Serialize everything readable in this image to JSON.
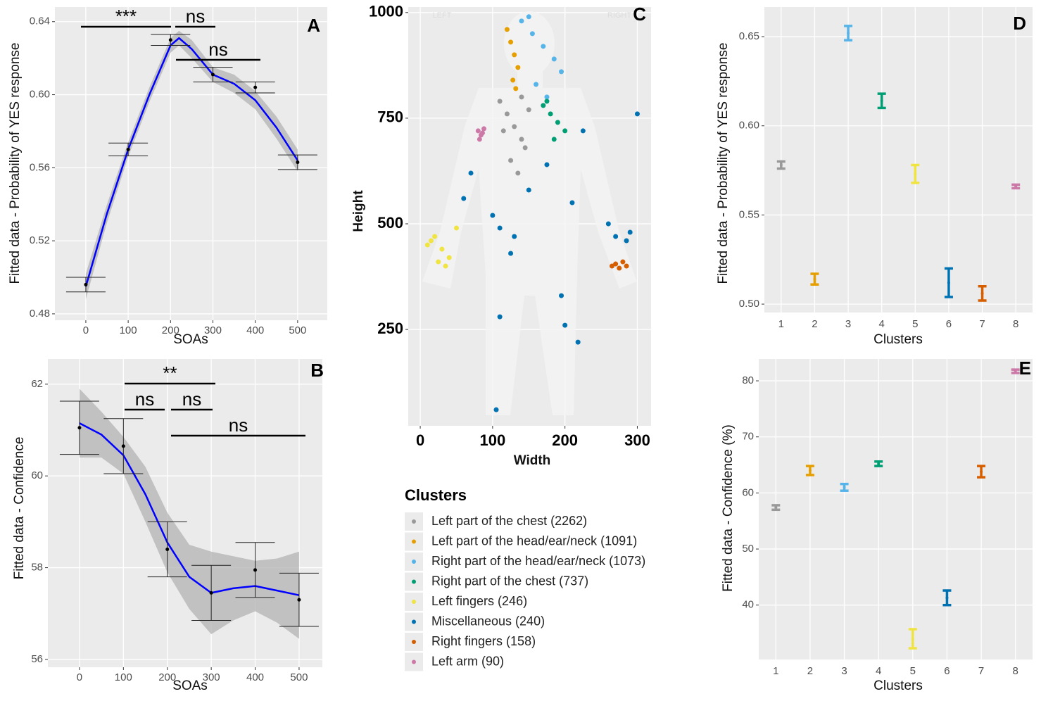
{
  "chart_data": [
    {
      "type": "line",
      "panel": "A",
      "x_label": "SOAs",
      "y_label": "Fitted data - Probability of YES response",
      "x": [
        0,
        100,
        200,
        300,
        400,
        500
      ],
      "values": [
        0.496,
        0.57,
        0.63,
        0.611,
        0.604,
        0.563
      ],
      "errors": [
        0.004,
        0.0035,
        0.003,
        0.004,
        0.003,
        0.004
      ],
      "fit": {
        "x": [
          0,
          50,
          100,
          150,
          200,
          220,
          250,
          300,
          350,
          400,
          450,
          500
        ],
        "values": [
          0.495,
          0.535,
          0.57,
          0.6,
          0.627,
          0.631,
          0.625,
          0.611,
          0.606,
          0.597,
          0.582,
          0.564
        ],
        "lower": [
          0.488,
          0.53,
          0.566,
          0.596,
          0.623,
          0.627,
          0.62,
          0.607,
          0.601,
          0.592,
          0.576,
          0.558
        ],
        "upper": [
          0.502,
          0.54,
          0.574,
          0.604,
          0.631,
          0.635,
          0.63,
          0.615,
          0.611,
          0.602,
          0.588,
          0.57
        ],
        "color": "#0000ff",
        "band_color": "#b3b3b3"
      },
      "point_color": "#000000",
      "xlim": [
        -73,
        570
      ],
      "xticks": [
        0,
        100,
        200,
        300,
        400,
        500
      ],
      "ylim": [
        0.4765,
        0.648
      ],
      "yticks": [
        0.48,
        0.52,
        0.56,
        {
          "value": 0.6,
          "label": "0.60"
        },
        0.64
      ],
      "annotations": [
        "***",
        "ns",
        "ns"
      ],
      "grid": true
    },
    {
      "type": "line",
      "panel": "B",
      "x_label": "SOAs",
      "y_label": "Fitted data - Confidence",
      "x": [
        0,
        100,
        200,
        300,
        400,
        500
      ],
      "values": [
        61.05,
        60.65,
        58.4,
        57.45,
        57.95,
        57.3
      ],
      "errors": [
        0.58,
        0.6,
        0.6,
        0.6,
        0.6,
        0.58
      ],
      "fit": {
        "x": [
          0,
          50,
          100,
          150,
          200,
          250,
          300,
          350,
          400,
          450,
          500
        ],
        "values": [
          61.15,
          60.9,
          60.45,
          59.6,
          58.55,
          57.8,
          57.45,
          57.55,
          57.6,
          57.5,
          57.4
        ],
        "lower": [
          60.4,
          60.4,
          60.05,
          59.0,
          57.9,
          57.1,
          56.55,
          56.85,
          57.05,
          56.8,
          56.45
        ],
        "upper": [
          61.9,
          61.4,
          60.85,
          60.2,
          59.2,
          58.5,
          58.35,
          58.25,
          58.15,
          58.2,
          58.35
        ],
        "color": "#0000ff",
        "band_color": "#b3b3b3"
      },
      "point_color": "#000000",
      "xlim": [
        -72,
        553
      ],
      "xticks": [
        0,
        100,
        200,
        300,
        400,
        500
      ],
      "ylim": [
        55.83,
        62.55
      ],
      "yticks": [
        56,
        58,
        60,
        62
      ],
      "annotations": [
        "**",
        "ns",
        "ns",
        "ns"
      ],
      "grid": true
    },
    {
      "type": "scatter",
      "panel": "C",
      "x_label": "Width",
      "y_label": "Height",
      "legend_title": "Clusters",
      "annotations": [
        "LEFT",
        "RIGHT"
      ],
      "xlim": [
        -16.6,
        319
      ],
      "xticks": [
        0,
        100,
        200,
        300
      ],
      "ylim": [
        22,
        1013
      ],
      "yticks": [
        250,
        500,
        750,
        1000
      ],
      "grid": true,
      "series": [
        {
          "name": "Left part of the chest (2262)",
          "color": "#999999",
          "x": [
            110,
            120,
            130,
            140,
            150,
            125,
            135,
            145,
            115,
            140
          ],
          "values": [
            790,
            760,
            730,
            700,
            770,
            650,
            620,
            680,
            720,
            800
          ]
        },
        {
          "name": "Left part of the head/ear/neck (1091)",
          "color": "#E69F00",
          "x": [
            120,
            125,
            130,
            135,
            128,
            132
          ],
          "values": [
            960,
            930,
            900,
            870,
            840,
            820
          ]
        },
        {
          "name": "Right part of the head/ear/neck (1073)",
          "color": "#56B4E9",
          "x": [
            140,
            155,
            170,
            185,
            195,
            160,
            175,
            150
          ],
          "values": [
            980,
            950,
            920,
            890,
            860,
            830,
            800,
            990
          ]
        },
        {
          "name": "Right part of the chest (737)",
          "color": "#009E73",
          "x": [
            170,
            180,
            190,
            200,
            185,
            175
          ],
          "values": [
            780,
            760,
            740,
            720,
            700,
            790
          ]
        },
        {
          "name": "Left fingers (246)",
          "color": "#F0E442",
          "x": [
            10,
            20,
            30,
            40,
            50,
            25,
            35,
            15
          ],
          "values": [
            450,
            470,
            440,
            420,
            490,
            410,
            400,
            460
          ]
        },
        {
          "name": "Miscellaneous (240)",
          "color": "#0072B2",
          "x": [
            70,
            60,
            100,
            110,
            125,
            150,
            175,
            210,
            225,
            260,
            270,
            285,
            300,
            130,
            195,
            200,
            110,
            105,
            218,
            290
          ],
          "values": [
            620,
            560,
            520,
            490,
            430,
            580,
            640,
            550,
            720,
            500,
            470,
            460,
            760,
            470,
            330,
            260,
            280,
            60,
            220,
            480
          ]
        },
        {
          "name": "Right fingers (158)",
          "color": "#D55E00",
          "x": [
            265,
            270,
            275,
            280,
            285
          ],
          "values": [
            400,
            405,
            395,
            410,
            400
          ]
        },
        {
          "name": "Left arm (90)",
          "color": "#CC79A7",
          "x": [
            80,
            84,
            88,
            82,
            86
          ],
          "values": [
            720,
            710,
            725,
            700,
            715
          ]
        }
      ]
    },
    {
      "type": "point",
      "panel": "D",
      "x_label": "Clusters",
      "y_label": "Fitted data - Probability of YES response",
      "categories": [
        "1",
        "2",
        "3",
        "4",
        "5",
        "6",
        "7",
        "8"
      ],
      "values": [
        0.578,
        0.514,
        0.652,
        0.614,
        0.573,
        0.512,
        0.506,
        0.566
      ],
      "errors": [
        0.002,
        0.003,
        0.004,
        0.004,
        0.005,
        0.008,
        0.004,
        0.001
      ],
      "colors": [
        "#999999",
        "#E69F00",
        "#56B4E9",
        "#009E73",
        "#F0E442",
        "#0072B2",
        "#D55E00",
        "#CC79A7"
      ],
      "ylim": [
        0.4953,
        0.6666
      ],
      "yticks": [
        {
          "value": 0.5,
          "label": "0.50"
        },
        0.55,
        {
          "value": 0.6,
          "label": "0.60"
        },
        0.65
      ],
      "grid": true
    },
    {
      "type": "point",
      "panel": "E",
      "x_label": "Clusters",
      "y_label": "Fitted data - Confidence (%)",
      "categories": [
        "1",
        "2",
        "3",
        "4",
        "5",
        "6",
        "7",
        "8"
      ],
      "values": [
        57.4,
        64.0,
        61.0,
        65.2,
        34.0,
        41.3,
        63.8,
        81.7
      ],
      "errors": [
        0.4,
        0.8,
        0.6,
        0.4,
        1.7,
        1.3,
        1.0,
        0.3
      ],
      "colors": [
        "#999999",
        "#E69F00",
        "#56B4E9",
        "#009E73",
        "#F0E442",
        "#0072B2",
        "#D55E00",
        "#CC79A7"
      ],
      "ylim": [
        30.3,
        83.9
      ],
      "yticks": [
        40,
        50,
        60,
        70,
        80
      ],
      "grid": true
    }
  ]
}
